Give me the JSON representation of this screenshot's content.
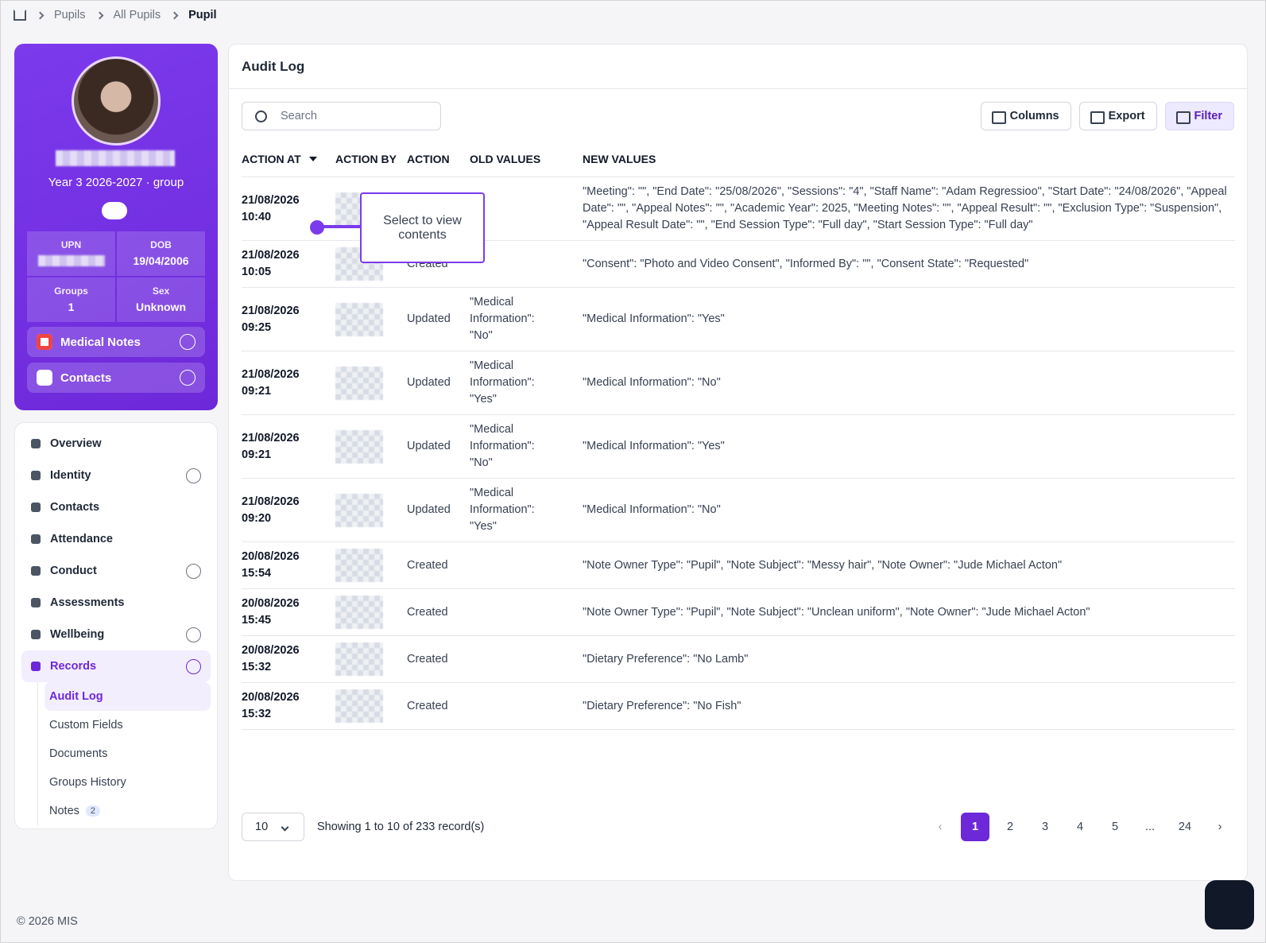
{
  "breadcrumb": [
    "Pupils",
    "All Pupils",
    "Pupil"
  ],
  "profile": {
    "group": "Year 3 2026-2027 · group",
    "stats": [
      {
        "label": "UPN"
      },
      {
        "label": "DOB",
        "value": "19/04/2006"
      },
      {
        "label": "Groups",
        "value": "1"
      },
      {
        "label": "Sex",
        "value": "Unknown"
      }
    ],
    "panels": [
      "Medical Notes",
      "Contacts"
    ]
  },
  "nav": [
    {
      "label": "Overview"
    },
    {
      "label": "Identity",
      "expandable": true
    },
    {
      "label": "Contacts"
    },
    {
      "label": "Attendance"
    },
    {
      "label": "Conduct",
      "expandable": true
    },
    {
      "label": "Assessments"
    },
    {
      "label": "Wellbeing",
      "expandable": true
    },
    {
      "label": "Records",
      "expandable": true,
      "expanded": true,
      "active": true,
      "children": [
        {
          "label": "Audit Log",
          "active": true
        },
        {
          "label": "Custom Fields"
        },
        {
          "label": "Documents"
        },
        {
          "label": "Groups History"
        },
        {
          "label": "Notes",
          "badge": "2"
        }
      ]
    }
  ],
  "main": {
    "title": "Audit Log",
    "search_placeholder": "Search",
    "buttons": [
      "Columns",
      "Export",
      "Filter"
    ],
    "headers": [
      "ACTION AT",
      "ACTION BY",
      "ACTION",
      "OLD VALUES",
      "NEW VALUES"
    ],
    "tooltip": "Select to view contents",
    "rows": [
      {
        "date": "21/08/2026",
        "time": "10:40",
        "new": "\"Meeting\": \"\", \"End Date\": \"25/08/2026\", \"Sessions\": \"4\", \"Staff Name\": \"Adam Regressioo\", \"Start Date\": \"24/08/2026\", \"Appeal Date\": \"\", \"Appeal Notes\": \"\", \"Academic Year\": 2025, \"Meeting Notes\": \"\", \"Appeal Result\": \"\", \"Exclusion Type\": \"Suspension\", \"Appeal Result Date\": \"\", \"End Session Type\": \"Full day\", \"Start Session Type\": \"Full day\""
      },
      {
        "date": "21/08/2026",
        "time": "10:05",
        "action": "Created",
        "new": "\"Consent\": \"Photo and Video Consent\", \"Informed By\": \"\", \"Consent State\": \"Requested\""
      },
      {
        "date": "21/08/2026",
        "time": "09:25",
        "action": "Updated",
        "old": "\"Medical Information\": \"No\"",
        "new": "\"Medical Information\": \"Yes\""
      },
      {
        "date": "21/08/2026",
        "time": "09:21",
        "action": "Updated",
        "old": "\"Medical Information\": \"Yes\"",
        "new": "\"Medical Information\": \"No\""
      },
      {
        "date": "21/08/2026",
        "time": "09:21",
        "action": "Updated",
        "old": "\"Medical Information\": \"No\"",
        "new": "\"Medical Information\": \"Yes\""
      },
      {
        "date": "21/08/2026",
        "time": "09:20",
        "action": "Updated",
        "old": "\"Medical Information\": \"Yes\"",
        "new": "\"Medical Information\": \"No\""
      },
      {
        "date": "20/08/2026",
        "time": "15:54",
        "action": "Created",
        "new": "\"Note Owner Type\": \"Pupil\", \"Note Subject\": \"Messy hair\", \"Note Owner\": \"Jude Michael Acton\""
      },
      {
        "date": "20/08/2026",
        "time": "15:45",
        "action": "Created",
        "new": "\"Note Owner Type\": \"Pupil\", \"Note Subject\": \"Unclean uniform\", \"Note Owner\": \"Jude Michael Acton\""
      },
      {
        "date": "20/08/2026",
        "time": "15:32",
        "action": "Created",
        "new": "\"Dietary Preference\": \"No Lamb\""
      },
      {
        "date": "20/08/2026",
        "time": "15:32",
        "action": "Created",
        "new": "\"Dietary Preference\": \"No Fish\""
      }
    ],
    "page_size": "10",
    "showing": "Showing 1 to 10 of 233 record(s)",
    "pages": [
      "1",
      "2",
      "3",
      "4",
      "5",
      "...",
      "24"
    ],
    "current_page": "1"
  },
  "footer": "© 2026 MIS"
}
